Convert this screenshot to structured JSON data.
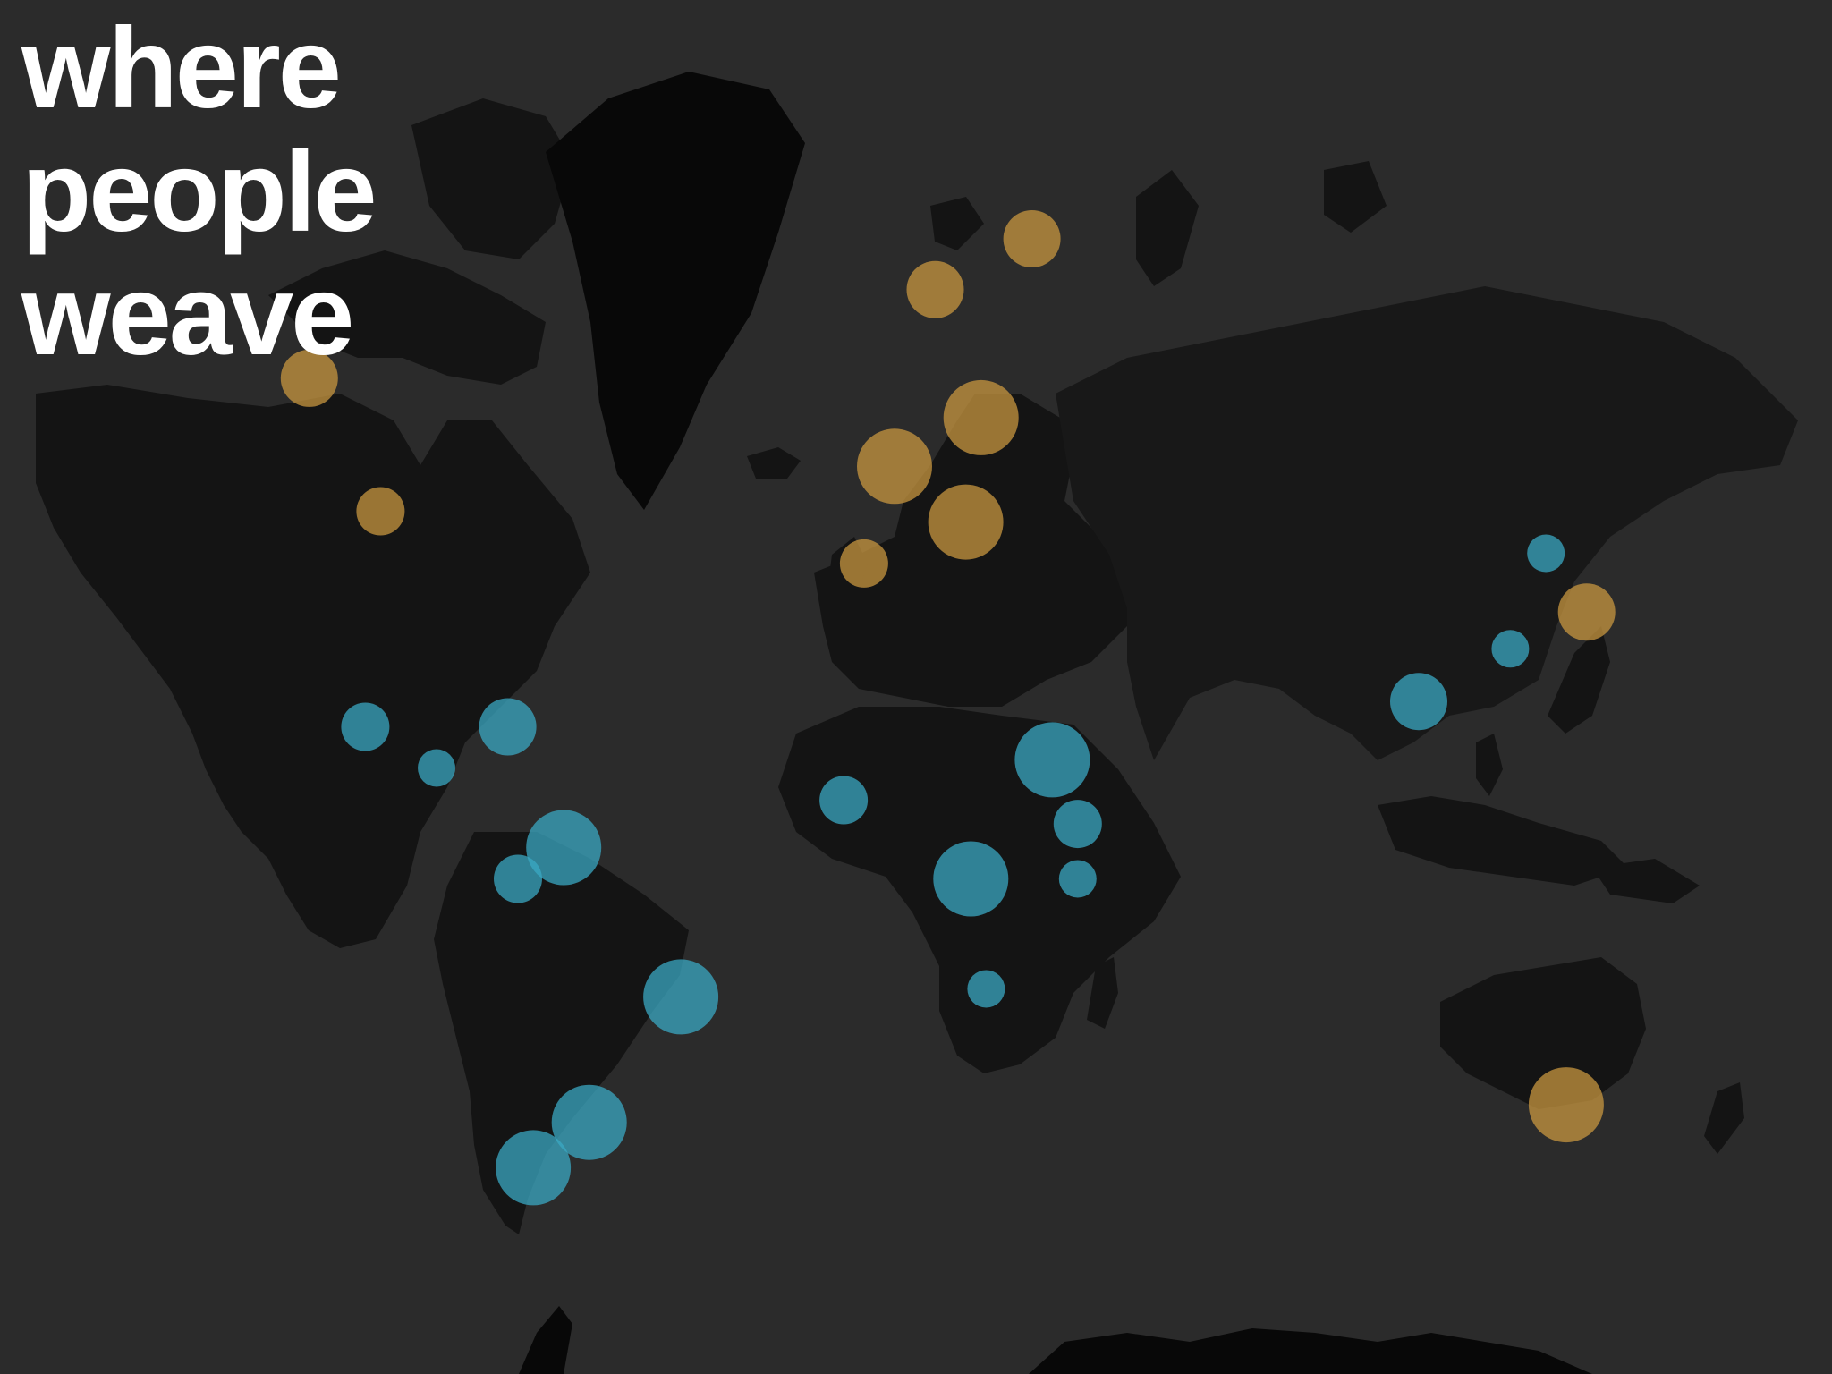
{
  "title": {
    "lines": [
      "where",
      "people",
      "weave"
    ]
  },
  "legend_colors": {
    "orange": "#c9973f",
    "blue": "#3aa9c4"
  },
  "markers": [
    {
      "id": "western-canada",
      "color": "orange",
      "size": "medium",
      "lat": 55,
      "lon": -115
    },
    {
      "id": "united-states",
      "color": "orange",
      "size": "small",
      "lat": 44,
      "lon": -101
    },
    {
      "id": "mexico",
      "color": "blue",
      "size": "small",
      "lat": 21,
      "lon": -104
    },
    {
      "id": "central-america",
      "color": "blue",
      "size": "xsmall",
      "lat": 16,
      "lon": -90
    },
    {
      "id": "caribbean",
      "color": "blue",
      "size": "medium",
      "lat": 21,
      "lon": -76
    },
    {
      "id": "venezuela",
      "color": "blue",
      "size": "large",
      "lat": 6,
      "lon": -65
    },
    {
      "id": "colombia",
      "color": "blue",
      "size": "small",
      "lat": 2,
      "lon": -74
    },
    {
      "id": "brazil",
      "color": "blue",
      "size": "large",
      "lat": -13,
      "lon": -42
    },
    {
      "id": "paraguay",
      "color": "blue",
      "size": "large",
      "lat": -28,
      "lon": -60
    },
    {
      "id": "chile",
      "color": "blue",
      "size": "large",
      "lat": -33,
      "lon": -71
    },
    {
      "id": "scandinavia",
      "color": "orange",
      "size": "medium",
      "lat": 61,
      "lon": 8
    },
    {
      "id": "finland",
      "color": "orange",
      "size": "medium",
      "lat": 64,
      "lon": 27
    },
    {
      "id": "germany-poland",
      "color": "orange",
      "size": "large",
      "lat": 52,
      "lon": 17
    },
    {
      "id": "france",
      "color": "orange",
      "size": "large",
      "lat": 48,
      "lon": 0
    },
    {
      "id": "italy",
      "color": "orange",
      "size": "large",
      "lat": 43,
      "lon": 14
    },
    {
      "id": "iberia",
      "color": "orange",
      "size": "small",
      "lat": 39,
      "lon": -6
    },
    {
      "id": "west-africa",
      "color": "blue",
      "size": "small",
      "lat": 12,
      "lon": -10
    },
    {
      "id": "sudan",
      "color": "blue",
      "size": "large",
      "lat": 17,
      "lon": 31
    },
    {
      "id": "ethiopia",
      "color": "blue",
      "size": "small",
      "lat": 9,
      "lon": 36
    },
    {
      "id": "kenya",
      "color": "blue",
      "size": "xsmall",
      "lat": 2,
      "lon": 36
    },
    {
      "id": "central-africa",
      "color": "blue",
      "size": "large",
      "lat": 2,
      "lon": 15
    },
    {
      "id": "angola",
      "color": "blue",
      "size": "xsmall",
      "lat": -12,
      "lon": 18
    },
    {
      "id": "southern-china",
      "color": "blue",
      "size": "medium",
      "lat": 24,
      "lon": 103
    },
    {
      "id": "eastern-china",
      "color": "blue",
      "size": "xsmall",
      "lat": 30,
      "lon": 121
    },
    {
      "id": "korea",
      "color": "blue",
      "size": "xsmall",
      "lat": 40,
      "lon": 128
    },
    {
      "id": "japan",
      "color": "orange",
      "size": "medium",
      "lat": 34,
      "lon": 136
    },
    {
      "id": "australia",
      "color": "orange",
      "size": "large",
      "lat": -26,
      "lon": 132
    }
  ]
}
